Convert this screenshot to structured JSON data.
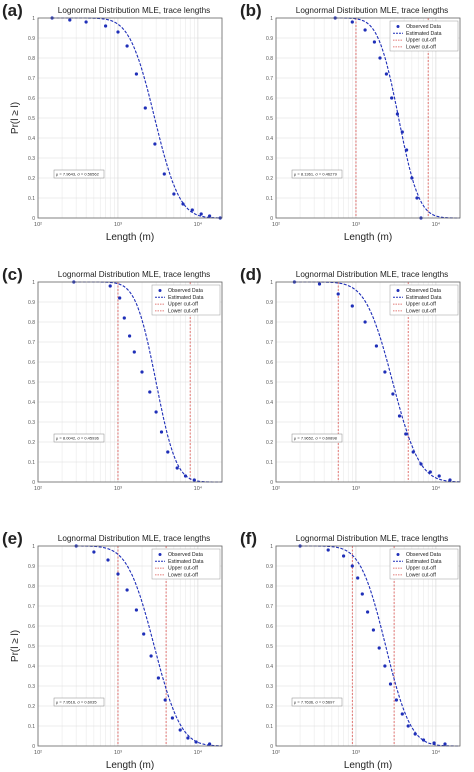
{
  "figure": {
    "panels": [
      {
        "letter": "(a)",
        "title": "Lognormal Distribution MLE, trace lengths",
        "xlabel": "Length (m)",
        "ylabel": "Pr(l ≥ l)",
        "annotation": "μ = 7.9643, σ = 0.56562",
        "has_legend": false
      },
      {
        "letter": "(b)",
        "title": "Lognormal Distribution MLE, trace lengths",
        "xlabel": "Length (m)",
        "ylabel": "",
        "annotation": "μ = 8.1361, σ = 0.46279",
        "has_legend": true
      },
      {
        "letter": "(c)",
        "title": "Lognormal Distribution MLE, trace lengths",
        "xlabel": "",
        "ylabel": "",
        "annotation": "μ = 8.0042, σ = 0.45936",
        "has_legend": true
      },
      {
        "letter": "(d)",
        "title": "Lognormal Distribution MLE, trace lengths",
        "xlabel": "",
        "ylabel": "",
        "annotation": "μ = 7.9652, σ = 0.60898",
        "has_legend": true
      },
      {
        "letter": "(e)",
        "title": "Lognormal Distribution MLE, trace lengths",
        "xlabel": "Length (m)",
        "ylabel": "Pr(l ≥ l)",
        "annotation": "μ = 7.9516, σ = 0.6035",
        "has_legend": true
      },
      {
        "letter": "(f)",
        "title": "Lognormal Distribution MLE, trace lengths",
        "xlabel": "Length (m)",
        "ylabel": "",
        "annotation": "μ = 7.7636, σ = 0.5697",
        "has_legend": true
      }
    ],
    "legend": [
      "Observed Data",
      "Estimated Data",
      "Upper cut-off",
      "Lower cut-off"
    ],
    "yticks": [
      "0",
      "0.1",
      "0.2",
      "0.3",
      "0.4",
      "0.5",
      "0.6",
      "0.7",
      "0.8",
      "0.9",
      "1"
    ],
    "xticks": [
      "10²",
      "10³",
      "10⁴"
    ]
  },
  "chart_data": [
    {
      "type": "scatter",
      "panel": "(a)",
      "x_scale": "log",
      "xlim": [
        100,
        20000
      ],
      "ylim": [
        0,
        1
      ],
      "grid": true,
      "mu": 7.9643,
      "sigma": 0.56562,
      "cutoffs": [],
      "series": [
        {
          "name": "Observed Data",
          "x": [
            150,
            250,
            400,
            700,
            1000,
            1300,
            1700,
            2200,
            2900,
            3800,
            5000,
            6500,
            8500,
            11000,
            14000,
            19000
          ],
          "y": [
            1.0,
            0.99,
            0.98,
            0.96,
            0.93,
            0.86,
            0.72,
            0.55,
            0.37,
            0.22,
            0.12,
            0.07,
            0.04,
            0.02,
            0.01,
            0.0
          ]
        },
        {
          "name": "Estimated Data",
          "line": "lognormal-ccdf"
        }
      ]
    },
    {
      "type": "scatter",
      "panel": "(b)",
      "x_scale": "log",
      "xlim": [
        100,
        20000
      ],
      "ylim": [
        0,
        1
      ],
      "grid": true,
      "mu": 8.1361,
      "sigma": 0.46279,
      "cutoffs": [
        1000,
        8000
      ],
      "series": [
        {
          "name": "Observed Data",
          "x": [
            550,
            900,
            1300,
            1700,
            2000,
            2400,
            2800,
            3300,
            3800,
            4300,
            5000,
            5800,
            6500
          ],
          "y": [
            1.0,
            0.98,
            0.94,
            0.88,
            0.8,
            0.72,
            0.6,
            0.52,
            0.43,
            0.34,
            0.2,
            0.1,
            0.0
          ]
        },
        {
          "name": "Estimated Data",
          "line": "lognormal-ccdf"
        },
        {
          "name": "Upper cut-off",
          "x": 8000
        },
        {
          "name": "Lower cut-off",
          "x": 1000
        }
      ]
    },
    {
      "type": "scatter",
      "panel": "(c)",
      "x_scale": "log",
      "xlim": [
        100,
        20000
      ],
      "ylim": [
        0,
        1
      ],
      "grid": true,
      "mu": 8.0042,
      "sigma": 0.45936,
      "cutoffs": [
        1000,
        8000
      ],
      "series": [
        {
          "name": "Observed Data",
          "x": [
            280,
            800,
            1050,
            1200,
            1400,
            1600,
            2000,
            2500,
            3000,
            3500,
            4200,
            5500,
            7000,
            9000
          ],
          "y": [
            1.0,
            0.98,
            0.92,
            0.82,
            0.73,
            0.65,
            0.55,
            0.45,
            0.35,
            0.25,
            0.15,
            0.07,
            0.03,
            0.01
          ]
        },
        {
          "name": "Estimated Data",
          "line": "lognormal-ccdf"
        },
        {
          "name": "Upper cut-off",
          "x": 8000
        },
        {
          "name": "Lower cut-off",
          "x": 1000
        }
      ]
    },
    {
      "type": "scatter",
      "panel": "(d)",
      "x_scale": "log",
      "xlim": [
        100,
        20000
      ],
      "ylim": [
        0,
        1
      ],
      "grid": true,
      "mu": 7.9652,
      "sigma": 0.60898,
      "cutoffs": [
        600,
        4500
      ],
      "series": [
        {
          "name": "Observed Data",
          "x": [
            170,
            350,
            600,
            900,
            1300,
            1800,
            2300,
            2900,
            3500,
            4200,
            5200,
            6500,
            8500,
            11000,
            15000
          ],
          "y": [
            1.0,
            0.99,
            0.94,
            0.88,
            0.8,
            0.68,
            0.55,
            0.44,
            0.33,
            0.24,
            0.15,
            0.09,
            0.05,
            0.03,
            0.01
          ]
        },
        {
          "name": "Estimated Data",
          "line": "lognormal-ccdf"
        },
        {
          "name": "Upper cut-off",
          "x": 4500
        },
        {
          "name": "Lower cut-off",
          "x": 600
        }
      ]
    },
    {
      "type": "scatter",
      "panel": "(e)",
      "x_scale": "log",
      "xlim": [
        100,
        20000
      ],
      "ylim": [
        0,
        1
      ],
      "grid": true,
      "mu": 7.9516,
      "sigma": 0.6035,
      "cutoffs": [
        1000,
        4000
      ],
      "series": [
        {
          "name": "Observed Data",
          "x": [
            300,
            500,
            750,
            1000,
            1300,
            1700,
            2100,
            2600,
            3200,
            3900,
            4800,
            6000,
            7500,
            9500,
            14000
          ],
          "y": [
            1.0,
            0.97,
            0.93,
            0.86,
            0.78,
            0.68,
            0.56,
            0.45,
            0.34,
            0.23,
            0.14,
            0.08,
            0.04,
            0.02,
            0.01
          ]
        },
        {
          "name": "Estimated Data",
          "line": "lognormal-ccdf"
        },
        {
          "name": "Upper cut-off",
          "x": 4000
        },
        {
          "name": "Lower cut-off",
          "x": 1000
        }
      ]
    },
    {
      "type": "scatter",
      "panel": "(f)",
      "x_scale": "log",
      "xlim": [
        100,
        20000
      ],
      "ylim": [
        0,
        1
      ],
      "grid": true,
      "mu": 7.7636,
      "sigma": 0.5697,
      "cutoffs": [
        900,
        3000
      ],
      "series": [
        {
          "name": "Observed Data",
          "x": [
            200,
            450,
            700,
            900,
            1050,
            1200,
            1400,
            1650,
            1950,
            2300,
            2700,
            3200,
            3800,
            4500,
            5500,
            7000,
            9500,
            13000
          ],
          "y": [
            1.0,
            0.98,
            0.95,
            0.9,
            0.84,
            0.76,
            0.67,
            0.58,
            0.49,
            0.4,
            0.31,
            0.23,
            0.16,
            0.1,
            0.06,
            0.03,
            0.015,
            0.01
          ]
        },
        {
          "name": "Estimated Data",
          "line": "lognormal-ccdf"
        },
        {
          "name": "Upper cut-off",
          "x": 3000
        },
        {
          "name": "Lower cut-off",
          "x": 900
        }
      ]
    }
  ]
}
